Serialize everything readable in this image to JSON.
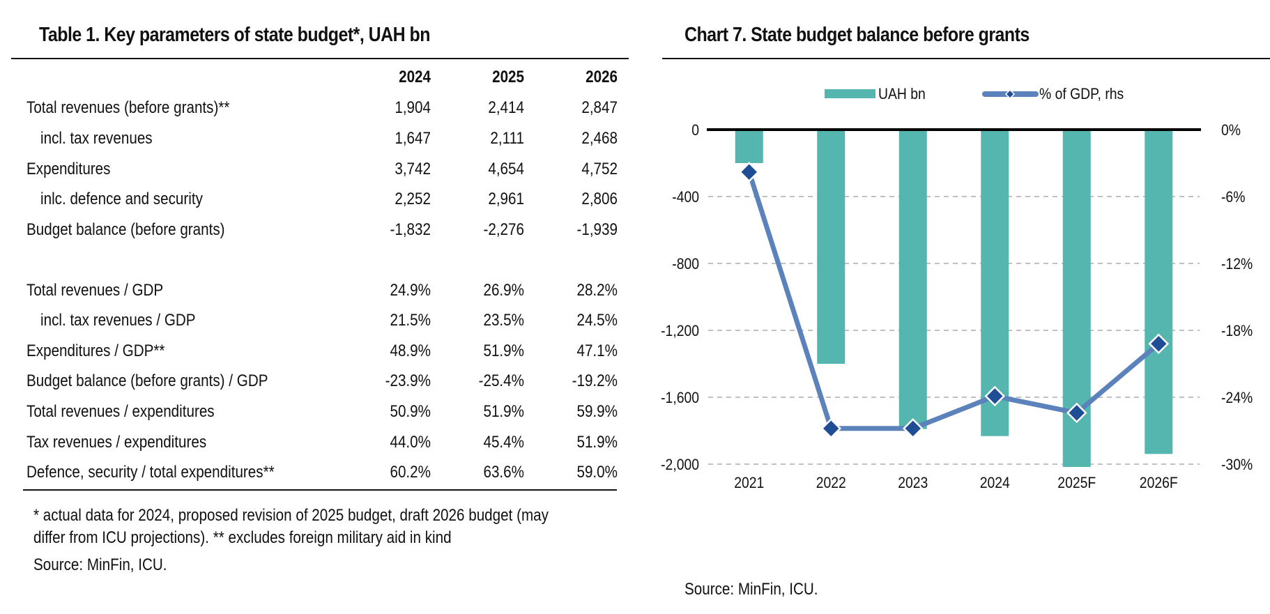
{
  "table": {
    "title": "Table 1. Key parameters of state budget*, UAH bn",
    "columns": [
      "2024",
      "2025",
      "2026"
    ],
    "rows": [
      {
        "label": "Total revenues (before grants)**",
        "indent": false,
        "values": [
          "1,904",
          "2,414",
          "2,847"
        ]
      },
      {
        "label": "incl. tax revenues",
        "indent": true,
        "values": [
          "1,647",
          "2,111",
          "2,468"
        ]
      },
      {
        "label": "Expenditures",
        "indent": false,
        "values": [
          "3,742",
          "4,654",
          "4,752"
        ]
      },
      {
        "label": "inlc. defence and security",
        "indent": true,
        "values": [
          "2,252",
          "2,961",
          "2,806"
        ]
      },
      {
        "label": "Budget balance (before grants)",
        "indent": false,
        "values": [
          "-1,832",
          "-2,276",
          "-1,939"
        ]
      },
      {
        "label": "Total revenues / GDP",
        "indent": false,
        "values": [
          "24.9%",
          "26.9%",
          "28.2%"
        ]
      },
      {
        "label": "incl. tax revenues / GDP",
        "indent": true,
        "values": [
          "21.5%",
          "23.5%",
          "24.5%"
        ]
      },
      {
        "label": "Expenditures / GDP**",
        "indent": false,
        "values": [
          "48.9%",
          "51.9%",
          "47.1%"
        ]
      },
      {
        "label": "Budget balance (before grants) / GDP",
        "indent": false,
        "values": [
          "-23.9%",
          "-25.4%",
          "-19.2%"
        ]
      },
      {
        "label": "Total revenues / expenditures",
        "indent": false,
        "values": [
          "50.9%",
          "51.9%",
          "59.9%"
        ]
      },
      {
        "label": "Tax revenues / expenditures",
        "indent": false,
        "values": [
          "44.0%",
          "45.4%",
          "51.9%"
        ]
      },
      {
        "label": "Defence, security / total expenditures**",
        "indent": false,
        "values": [
          "60.2%",
          "63.6%",
          "59.0%"
        ]
      }
    ],
    "footnote_line1": "* actual data for 2024, proposed revision of 2025 budget, draft 2026 budget (may",
    "footnote_line2": "differ from ICU projections). ** excludes foreign military aid in kind",
    "source": "Source: MinFin, ICU."
  },
  "chart_data": {
    "type": "bar",
    "title": "Chart 7. State budget balance before grants",
    "categories": [
      "2021",
      "2022",
      "2023",
      "2024",
      "2025F",
      "2026F"
    ],
    "series": [
      {
        "name": "UAH bn",
        "type": "bar",
        "axis": "left",
        "color": "#55B6B0",
        "values": [
          -200,
          -1400,
          -1790,
          -1832,
          -2276,
          -1939
        ]
      },
      {
        "name": "% of GDP, rhs",
        "type": "line",
        "axis": "right",
        "color": "#5B82BA",
        "marker_color": "#1F4E96",
        "values": [
          -3.8,
          -26.8,
          -26.8,
          -23.9,
          -25.4,
          -19.2
        ]
      }
    ],
    "left_axis": {
      "ylim": [
        -2000,
        0
      ],
      "ticks": [
        0,
        -400,
        -800,
        -1200,
        -1600,
        -2000
      ],
      "tick_labels": [
        "0",
        "-400",
        "-800",
        "-1,200",
        "-1,600",
        "-2,000"
      ]
    },
    "right_axis": {
      "ylim": [
        -30,
        0
      ],
      "ticks": [
        0,
        -6,
        -12,
        -18,
        -24,
        -30
      ],
      "tick_labels": [
        "0%",
        "-6%",
        "-12%",
        "-18%",
        "-24%",
        "-30%"
      ]
    },
    "xlabel": "",
    "ylabel": "",
    "grid": true,
    "legend": "top-center",
    "source": "Source: MinFin, ICU."
  }
}
